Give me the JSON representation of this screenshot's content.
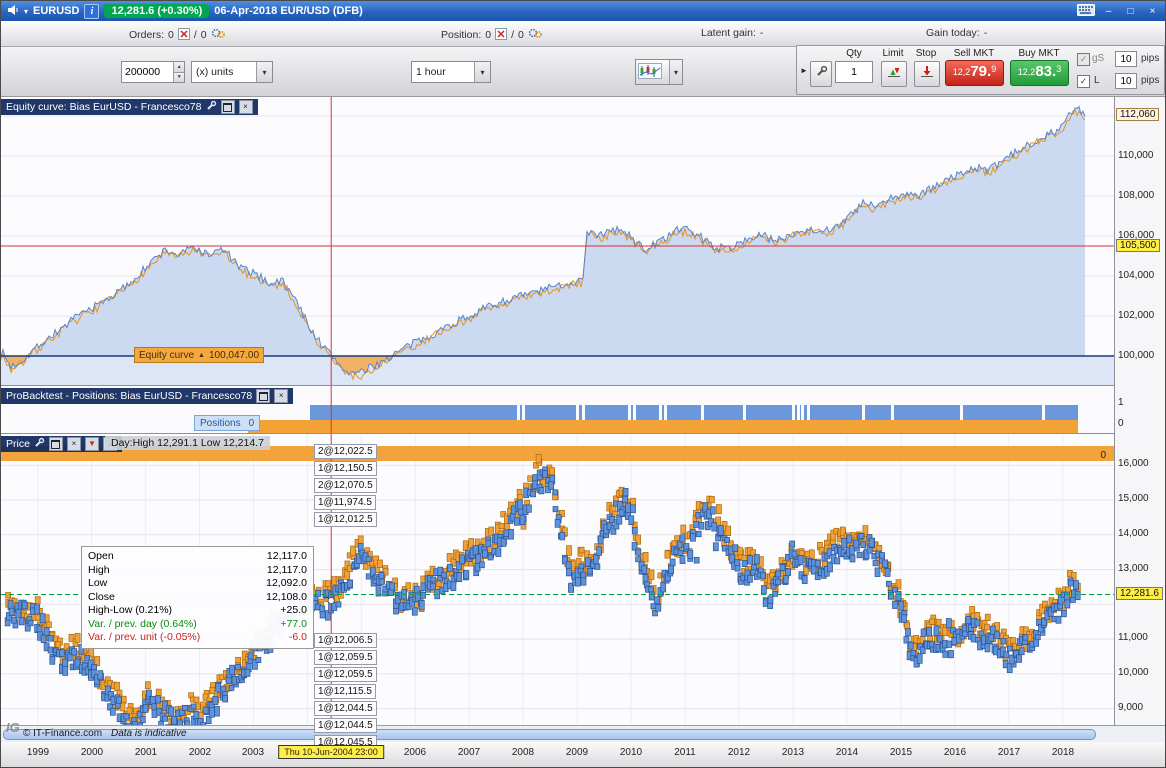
{
  "icons": {
    "dropdown": "▾",
    "spin_up": "▲",
    "spin_down": "▼",
    "minimize": "–",
    "maximize": "□",
    "close": "×",
    "check": "✓",
    "collapse": "►",
    "marker_up": "▲",
    "arrow_down": "▼",
    "arrow_up": "▲"
  },
  "title_bar": {
    "symbol": "EURUSD",
    "info": "i",
    "price_badge": "12,281.6 (+0.30%)",
    "title": "06-Apr-2018 EUR/USD (DFB)"
  },
  "status_bar": {
    "orders_label": "Orders:",
    "orders_open": "0",
    "orders_sep": "/",
    "orders_pending": "0",
    "position_label": "Position:",
    "position_open": "0",
    "position_sep": "/",
    "position_pending": "0",
    "latent_label": "Latent gain:",
    "latent_value": "-",
    "gain_label": "Gain today:",
    "gain_value": "-"
  },
  "trade_panel": {
    "qty_label": "Qty",
    "qty_value": "1",
    "limit_label": "Limit",
    "stop_label": "Stop",
    "sell_label": "Sell MKT",
    "sell_prefix": "12,2",
    "sell_big": "79.",
    "sell_sup": "9",
    "buy_label": "Buy MKT",
    "buy_prefix": "12,2",
    "buy_big": "83.",
    "buy_sup": "3",
    "gs_label": "gS",
    "l_label": "L",
    "gs_pips_value": "10",
    "gs_pips_label": "pips",
    "l_pips_value": "10",
    "l_pips_label": "pips"
  },
  "chart_controls": {
    "quantity": "200000",
    "units": "(x) units",
    "timeframe": "1 hour"
  },
  "equity_panel": {
    "title": "Equity curve: Bias EurUSD - Francesco78",
    "marker_label": "Equity curve",
    "marker_value": "100,047.00"
  },
  "positions_panel": {
    "title": "ProBacktest - Positions: Bias EurUSD - Francesco78",
    "label": "Positions",
    "value": "0",
    "axis_top": "1",
    "axis_bottom": "0"
  },
  "price_panel": {
    "title": "Price",
    "day_info": "Day:High 12,291.1 Low 12,214.7",
    "positions_band_value": "0",
    "tooltip": [
      {
        "label": "Open",
        "value": "12,117.0",
        "color": "#000000"
      },
      {
        "label": "High",
        "value": "12,117.0",
        "color": "#000000"
      },
      {
        "label": "Low",
        "value": "12,092.0",
        "color": "#000000"
      },
      {
        "label": "Close",
        "value": "12,108.0",
        "color": "#000000"
      },
      {
        "label": "High-Low (0.21%)",
        "value": "+25.0",
        "color": "#000000"
      },
      {
        "label": "Var. / prev. day (0.64%)",
        "value": "+77.0",
        "color": "#0a8a0a"
      },
      {
        "label": "Var. / prev. unit (-0.05%)",
        "value": "-6.0",
        "color": "#cc2222"
      }
    ],
    "orders_top": [
      "2@12,022.5",
      "1@12,150.5",
      "2@12,070.5",
      "1@11,974.5",
      "1@12,012.5"
    ],
    "orders_bottom": [
      "1@12,006.5",
      "1@12,059.5",
      "1@12,059.5",
      "1@12,115.5",
      "1@12,044.5",
      "1@12,044.5",
      "1@12,045.5"
    ]
  },
  "footer": {
    "logo": "IG",
    "copyright": "© IT-Finance.com",
    "note": "Data is indicative",
    "highlight_date": "Thu 10-Jun-2004 23:00",
    "years": [
      1999,
      2000,
      2001,
      2002,
      2003,
      2006,
      2007,
      2008,
      2009,
      2010,
      2011,
      2012,
      2013,
      2014,
      2015,
      2016,
      2017,
      2018
    ]
  },
  "chart_data": [
    {
      "id": "equity-curve",
      "type": "area",
      "title": "Equity curve: Bias EurUSD - Francesco78",
      "x_domain": [
        1998.32,
        2018.95
      ],
      "y_domain": [
        98550,
        112950
      ],
      "baseline": 100000,
      "y_ticks": [
        100000,
        102000,
        104000,
        106000,
        108000,
        110000,
        112000
      ],
      "axis_ticks": [
        110000,
        108000,
        106000,
        104000,
        102000,
        100000
      ],
      "last_value": 112060,
      "crosshair": {
        "x": 2004.44,
        "y": 105500,
        "equity_value": 100047
      },
      "series": [
        {
          "name": "Equity curve",
          "color": "#5b84c6",
          "points": [
            [
              1998.35,
              100150
            ],
            [
              1998.5,
              99450
            ],
            [
              1998.7,
              99750
            ],
            [
              1999.0,
              100500
            ],
            [
              1999.4,
              101300
            ],
            [
              1999.8,
              102100
            ],
            [
              2000.2,
              102700
            ],
            [
              2000.6,
              103400
            ],
            [
              2001.0,
              104400
            ],
            [
              2001.35,
              105300
            ],
            [
              2001.6,
              105050
            ],
            [
              2001.9,
              105450
            ],
            [
              2002.15,
              105050
            ],
            [
              2002.45,
              105350
            ],
            [
              2002.75,
              104400
            ],
            [
              2003.0,
              104150
            ],
            [
              2003.3,
              103650
            ],
            [
              2003.55,
              103750
            ],
            [
              2003.8,
              102700
            ],
            [
              2004.05,
              101400
            ],
            [
              2004.25,
              100600
            ],
            [
              2004.44,
              100047
            ],
            [
              2004.7,
              99250
            ],
            [
              2004.95,
              99100
            ],
            [
              2005.2,
              99450
            ],
            [
              2005.5,
              99900
            ],
            [
              2005.8,
              100400
            ],
            [
              2006.1,
              100800
            ],
            [
              2006.5,
              101350
            ],
            [
              2006.9,
              101900
            ],
            [
              2007.3,
              102400
            ],
            [
              2007.7,
              102800
            ],
            [
              2008.1,
              103100
            ],
            [
              2008.5,
              103400
            ],
            [
              2008.9,
              103700
            ],
            [
              2009.1,
              103800
            ],
            [
              2009.18,
              106250
            ],
            [
              2009.45,
              106050
            ],
            [
              2009.75,
              106350
            ],
            [
              2010.0,
              105950
            ],
            [
              2010.25,
              105350
            ],
            [
              2010.5,
              105650
            ],
            [
              2010.8,
              106250
            ],
            [
              2011.05,
              106350
            ],
            [
              2011.3,
              105950
            ],
            [
              2011.55,
              105450
            ],
            [
              2011.8,
              105350
            ],
            [
              2012.1,
              105800
            ],
            [
              2012.4,
              106050
            ],
            [
              2012.7,
              105750
            ],
            [
              2013.0,
              106150
            ],
            [
              2013.3,
              106350
            ],
            [
              2013.6,
              106250
            ],
            [
              2013.9,
              106650
            ],
            [
              2014.1,
              107100
            ],
            [
              2014.3,
              107650
            ],
            [
              2014.55,
              107450
            ],
            [
              2014.8,
              107850
            ],
            [
              2015.1,
              108150
            ],
            [
              2015.35,
              108000
            ],
            [
              2015.7,
              108600
            ],
            [
              2016.05,
              109050
            ],
            [
              2016.35,
              109400
            ],
            [
              2016.65,
              109300
            ],
            [
              2017.0,
              109950
            ],
            [
              2017.3,
              110450
            ],
            [
              2017.6,
              110950
            ],
            [
              2017.85,
              111250
            ],
            [
              2018.0,
              111500
            ],
            [
              2018.12,
              112050
            ],
            [
              2018.25,
              112400
            ],
            [
              2018.35,
              112150
            ],
            [
              2018.42,
              112060
            ]
          ]
        },
        {
          "name": "Equity curve secondary",
          "color": "#e8941f",
          "offset": -140
        }
      ]
    },
    {
      "id": "positions",
      "type": "band",
      "title": "ProBacktest - Positions",
      "axis_max": 1,
      "axis_min": 0,
      "current_value": 0,
      "blue_band_frac": [
        0.278,
        0.968
      ],
      "orange_band_frac": [
        0.222,
        0.968
      ],
      "gap_fractions": [
        0.464,
        0.468,
        0.517,
        0.522,
        0.563,
        0.568,
        0.591,
        0.596,
        0.629,
        0.667,
        0.711,
        0.715,
        0.719,
        0.724,
        0.774,
        0.8,
        0.862,
        0.935
      ]
    },
    {
      "id": "price",
      "type": "candle-cloud",
      "title": "Price EUR/USD 1 hour",
      "x_domain": [
        1998.32,
        2018.95
      ],
      "y_domain": [
        8500,
        16900
      ],
      "y_ticks_grid": [
        9000,
        10000,
        11000,
        12000,
        13000,
        14000,
        15000,
        16000
      ],
      "axis_ticks": [
        16000,
        15000,
        14000,
        13000,
        11000,
        10000,
        9000
      ],
      "last_price": 12281.6,
      "day_high": 12291.1,
      "day_low": 12214.7,
      "crosshair": {
        "x": 2004.44,
        "open": 12117.0,
        "high": 12117.0,
        "low": 12092.0,
        "close": 12108.0
      },
      "points": [
        [
          1998.45,
          11850
        ],
        [
          1999.0,
          11700
        ],
        [
          1999.25,
          10850
        ],
        [
          1999.5,
          10400
        ],
        [
          1999.75,
          10650
        ],
        [
          2000.0,
          10100
        ],
        [
          2000.3,
          9550
        ],
        [
          2000.6,
          8900
        ],
        [
          2000.85,
          8450
        ],
        [
          2001.05,
          9350
        ],
        [
          2001.3,
          8950
        ],
        [
          2001.55,
          8550
        ],
        [
          2001.8,
          8950
        ],
        [
          2002.0,
          8700
        ],
        [
          2002.3,
          9300
        ],
        [
          2002.6,
          9900
        ],
        [
          2002.9,
          10100
        ],
        [
          2003.1,
          10800
        ],
        [
          2003.4,
          11300
        ],
        [
          2003.7,
          11600
        ],
        [
          2003.95,
          12400
        ],
        [
          2004.2,
          12050
        ],
        [
          2004.44,
          12108
        ],
        [
          2004.7,
          12600
        ],
        [
          2004.95,
          13450
        ],
        [
          2005.1,
          13200
        ],
        [
          2005.4,
          12600
        ],
        [
          2005.7,
          12050
        ],
        [
          2006.0,
          12100
        ],
        [
          2006.3,
          12600
        ],
        [
          2006.6,
          12800
        ],
        [
          2006.9,
          13150
        ],
        [
          2007.2,
          13400
        ],
        [
          2007.5,
          13800
        ],
        [
          2007.8,
          14500
        ],
        [
          2008.0,
          14800
        ],
        [
          2008.3,
          15700
        ],
        [
          2008.55,
          15500
        ],
        [
          2008.75,
          13800
        ],
        [
          2008.9,
          12800
        ],
        [
          2009.1,
          13100
        ],
        [
          2009.25,
          12900
        ],
        [
          2009.5,
          14100
        ],
        [
          2009.8,
          14900
        ],
        [
          2009.95,
          15000
        ],
        [
          2010.15,
          13500
        ],
        [
          2010.45,
          11950
        ],
        [
          2010.7,
          13100
        ],
        [
          2010.95,
          13700
        ],
        [
          2011.1,
          13600
        ],
        [
          2011.35,
          14800
        ],
        [
          2011.6,
          14300
        ],
        [
          2011.85,
          13500
        ],
        [
          2012.05,
          13050
        ],
        [
          2012.3,
          13150
        ],
        [
          2012.55,
          12250
        ],
        [
          2012.8,
          12850
        ],
        [
          2013.05,
          13350
        ],
        [
          2013.3,
          12950
        ],
        [
          2013.6,
          13300
        ],
        [
          2013.85,
          13650
        ],
        [
          2014.1,
          13700
        ],
        [
          2014.35,
          13800
        ],
        [
          2014.6,
          13300
        ],
        [
          2014.85,
          12500
        ],
        [
          2015.05,
          11600
        ],
        [
          2015.25,
          10550
        ],
        [
          2015.5,
          11150
        ],
        [
          2015.75,
          10950
        ],
        [
          2016.0,
          10900
        ],
        [
          2016.3,
          11350
        ],
        [
          2016.55,
          11150
        ],
        [
          2016.8,
          11000
        ],
        [
          2016.95,
          10500
        ],
        [
          2017.15,
          10650
        ],
        [
          2017.4,
          10900
        ],
        [
          2017.65,
          11600
        ],
        [
          2017.9,
          11900
        ],
        [
          2018.05,
          12100
        ],
        [
          2018.15,
          12450
        ],
        [
          2018.27,
          12282
        ]
      ]
    }
  ]
}
